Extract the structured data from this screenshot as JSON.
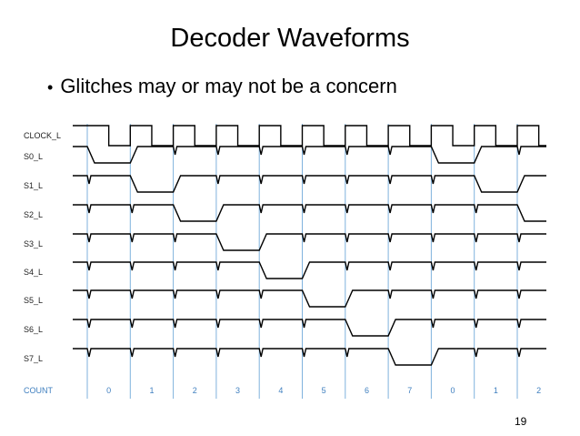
{
  "slide": {
    "title": "Decoder Waveforms",
    "bullets": [
      "Glitches may or may not be a concern"
    ],
    "page_number": "19"
  },
  "diagram": {
    "signals": [
      "CLOCK_L",
      "S0_L",
      "S1_L",
      "S2_L",
      "S3_L",
      "S4_L",
      "S5_L",
      "S6_L",
      "S7_L"
    ],
    "count_label": "COUNT",
    "count_values": [
      "0",
      "1",
      "2",
      "3",
      "4",
      "5",
      "6",
      "7",
      "0",
      "1",
      "2"
    ],
    "active_low_output_per_period": [
      0,
      1,
      2,
      3,
      4,
      5,
      6,
      7,
      0,
      1,
      2
    ],
    "colors": {
      "waveform": "#000000",
      "grid": "#7fb2dd",
      "count_text": "#3f7fbf"
    }
  }
}
